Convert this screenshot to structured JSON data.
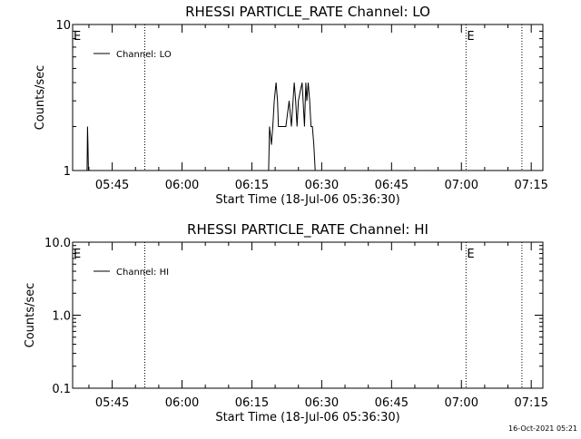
{
  "timestamp": "16-Oct-2021 05:21",
  "chart_data": [
    {
      "type": "line",
      "title": "RHESSI PARTICLE_RATE Channel: LO",
      "xlabel": "Start Time (18-Jul-06 05:36:30)",
      "ylabel": "Counts/sec",
      "yscale": "log",
      "ylim": [
        1,
        10
      ],
      "yticks": [
        "1",
        "10"
      ],
      "xlim": [
        336.5,
        437.5
      ],
      "x_unit": "minutes after 00:00 UT",
      "xticks": [
        {
          "label": "05:45",
          "value": 345
        },
        {
          "label": "06:00",
          "value": 360
        },
        {
          "label": "06:15",
          "value": 375
        },
        {
          "label": "06:30",
          "value": 390
        },
        {
          "label": "06:45",
          "value": 405
        },
        {
          "label": "07:00",
          "value": 420
        },
        {
          "label": "07:15",
          "value": 435
        }
      ],
      "legend": "Channel: LO",
      "legend_position": "top-left",
      "event_markers": [
        {
          "label": "E",
          "x": 336.5
        },
        {
          "label": "E",
          "x": 421
        }
      ],
      "dotted_lines": [
        352,
        421,
        433
      ],
      "series": [
        {
          "name": "Channel: LO",
          "x": [
            339.3,
            339.6,
            339.7,
            339.8,
            339.9,
            340.2,
            378.6,
            378.8,
            379.2,
            379.5,
            379.8,
            380.2,
            380.5,
            380.7,
            380.9,
            381.1,
            381.3,
            381.6,
            382.0,
            382.3,
            383.0,
            383.5,
            384.1,
            384.4,
            384.7,
            385.0,
            385.4,
            385.8,
            386.0,
            386.3,
            386.6,
            386.8,
            387.1,
            387.4,
            387.7,
            388.0,
            388.3,
            388.6,
            389.1
          ],
          "y": [
            1,
            1,
            2,
            1.5,
            1,
            1,
            1,
            2,
            1.5,
            2,
            3,
            4,
            3,
            2,
            2,
            2,
            2,
            2,
            2,
            2,
            3,
            2,
            4,
            3,
            2,
            3,
            3.5,
            4,
            3,
            2,
            4,
            3,
            4,
            3,
            2,
            2,
            1.5,
            1,
            1
          ]
        }
      ]
    },
    {
      "type": "line",
      "title": "RHESSI PARTICLE_RATE Channel: HI",
      "xlabel": "Start Time (18-Jul-06 05:36:30)",
      "ylabel": "Counts/sec",
      "yscale": "log",
      "ylim": [
        0.1,
        10
      ],
      "yticks": [
        "0.1",
        "1.0",
        "10.0"
      ],
      "xlim": [
        336.5,
        437.5
      ],
      "x_unit": "minutes after 00:00 UT",
      "xticks": [
        {
          "label": "05:45",
          "value": 345
        },
        {
          "label": "06:00",
          "value": 360
        },
        {
          "label": "06:15",
          "value": 375
        },
        {
          "label": "06:30",
          "value": 390
        },
        {
          "label": "06:45",
          "value": 405
        },
        {
          "label": "07:00",
          "value": 420
        },
        {
          "label": "07:15",
          "value": 435
        }
      ],
      "legend": "Channel: HI",
      "legend_position": "top-left",
      "event_markers": [
        {
          "label": "E",
          "x": 336.5
        },
        {
          "label": "E",
          "x": 421
        }
      ],
      "dotted_lines": [
        352,
        421,
        433
      ],
      "series": [
        {
          "name": "Channel: HI",
          "x": [],
          "y": []
        }
      ]
    }
  ]
}
